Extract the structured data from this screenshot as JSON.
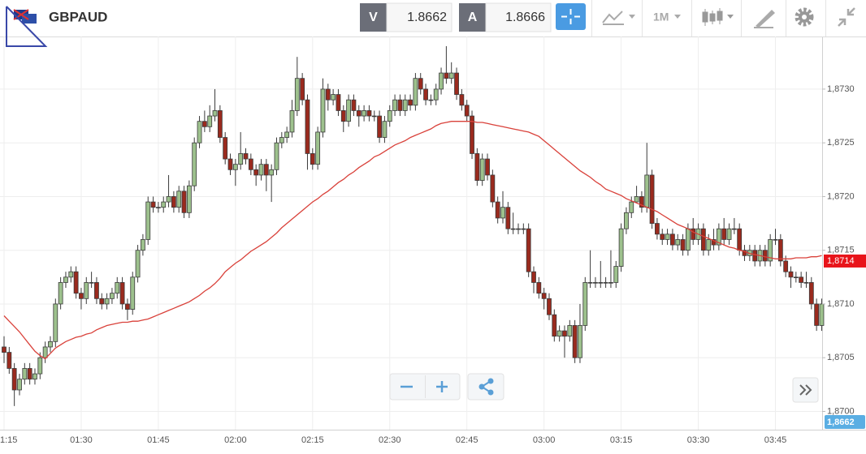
{
  "toolbar": {
    "symbol": "GBPAUD",
    "bid_label": "V",
    "bid": "1.8662",
    "ask_label": "A",
    "ask": "1.8666",
    "timeframe": "1M"
  },
  "chart_data": {
    "type": "candlestick",
    "categories": [
      "1:15",
      null,
      null,
      null,
      null,
      null,
      null,
      null,
      null,
      null,
      null,
      null,
      null,
      null,
      null,
      "01:30",
      null,
      null,
      null,
      null,
      null,
      null,
      null,
      null,
      null,
      null,
      null,
      null,
      null,
      null,
      "01:45",
      null,
      null,
      null,
      null,
      null,
      null,
      null,
      null,
      null,
      null,
      null,
      null,
      null,
      null,
      "02:00",
      null,
      null,
      null,
      null,
      null,
      null,
      null,
      null,
      null,
      null,
      null,
      null,
      null,
      null,
      "02:15",
      null,
      null,
      null,
      null,
      null,
      null,
      null,
      null,
      null,
      null,
      null,
      null,
      null,
      null,
      "02:30",
      null,
      null,
      null,
      null,
      null,
      null,
      null,
      null,
      null,
      null,
      null,
      null,
      null,
      null,
      "02:45",
      null,
      null,
      null,
      null,
      null,
      null,
      null,
      null,
      null,
      null,
      null,
      null,
      null,
      null,
      "03:00",
      null,
      null,
      null,
      null,
      null,
      null,
      null,
      null,
      null,
      null,
      null,
      null,
      null,
      null,
      "03:15",
      null,
      null,
      null,
      null,
      null,
      null,
      null,
      null,
      null,
      null,
      null,
      null,
      null,
      null,
      "03:30",
      null,
      null,
      null,
      null,
      null,
      null,
      null,
      null,
      null,
      null,
      null,
      null,
      null,
      null,
      "03:45",
      null,
      null,
      null,
      null,
      null,
      null,
      null,
      null,
      null
    ],
    "open": [
      1.8706,
      1.87055,
      1.8704,
      1.8702,
      1.8703,
      1.8704,
      1.8703,
      1.87035,
      1.8705,
      1.8706,
      1.87065,
      1.871,
      1.8712,
      1.87125,
      1.8713,
      1.8711,
      1.87105,
      1.8712,
      1.8712,
      1.87105,
      1.871,
      1.87105,
      1.8711,
      1.8712,
      1.871,
      1.87095,
      1.87125,
      1.8715,
      1.8716,
      1.87195,
      1.8719,
      1.8719,
      1.87195,
      1.872,
      1.8719,
      1.87205,
      1.87185,
      1.8721,
      1.8725,
      1.8727,
      1.87265,
      1.87275,
      1.8728,
      1.87255,
      1.87235,
      1.87225,
      1.8723,
      1.8724,
      1.87235,
      1.87225,
      1.8722,
      1.8723,
      1.8722,
      1.87225,
      1.8725,
      1.87255,
      1.8726,
      1.8728,
      1.8731,
      1.8729,
      1.8724,
      1.8723,
      1.8726,
      1.873,
      1.8729,
      1.87295,
      1.8728,
      1.8727,
      1.8729,
      1.8728,
      1.87275,
      1.8728,
      1.87275,
      1.87275,
      1.87255,
      1.8727,
      1.8728,
      1.8729,
      1.8728,
      1.8729,
      1.87285,
      1.8731,
      1.873,
      1.8729,
      1.8729,
      1.873,
      1.87315,
      1.8731,
      1.87315,
      1.87295,
      1.87285,
      1.87275,
      1.8724,
      1.87215,
      1.87235,
      1.8722,
      1.87195,
      1.8718,
      1.8719,
      1.8717,
      1.8717,
      1.8717,
      1.8717,
      1.8713,
      1.8712,
      1.8711,
      1.87105,
      1.8709,
      1.8707,
      1.87075,
      1.8707,
      1.8708,
      1.8705,
      1.8708,
      1.8712,
      1.8712,
      1.8712,
      1.8712,
      1.8712,
      1.8712,
      1.87135,
      1.8717,
      1.87185,
      1.87195,
      1.872,
      1.8719,
      1.8722,
      1.87175,
      1.87165,
      1.8716,
      1.87165,
      1.87155,
      1.8716,
      1.8715,
      1.8717,
      1.8716,
      1.8717,
      1.8715,
      1.8716,
      1.87155,
      1.8717,
      1.8716,
      1.8717,
      1.8717,
      1.8715,
      1.87145,
      1.8715,
      1.8714,
      1.8715,
      1.8714,
      1.8716,
      1.8716,
      1.8714,
      1.8713,
      1.87125,
      1.87125,
      1.8712,
      1.8712,
      1.871,
      1.8708
    ],
    "high": [
      1.8707,
      1.8706,
      1.87045,
      1.87035,
      1.87045,
      1.87045,
      1.8704,
      1.87055,
      1.87065,
      1.8707,
      1.87105,
      1.87125,
      1.8713,
      1.87135,
      1.87135,
      1.87115,
      1.87125,
      1.8713,
      1.87125,
      1.8711,
      1.8711,
      1.87115,
      1.87125,
      1.87125,
      1.87105,
      1.8713,
      1.87155,
      1.87165,
      1.872,
      1.872,
      1.87195,
      1.872,
      1.8722,
      1.87205,
      1.8721,
      1.8721,
      1.87215,
      1.87255,
      1.87275,
      1.8728,
      1.87285,
      1.873,
      1.87285,
      1.8726,
      1.8724,
      1.87235,
      1.8726,
      1.87245,
      1.8724,
      1.8723,
      1.87235,
      1.87235,
      1.8723,
      1.87255,
      1.8726,
      1.87265,
      1.8729,
      1.8733,
      1.87315,
      1.87295,
      1.87245,
      1.87265,
      1.8731,
      1.87305,
      1.873,
      1.873,
      1.87285,
      1.87295,
      1.87295,
      1.87285,
      1.87285,
      1.87285,
      1.8728,
      1.8728,
      1.87275,
      1.87285,
      1.87295,
      1.87295,
      1.87295,
      1.87295,
      1.87315,
      1.87315,
      1.87305,
      1.87295,
      1.87305,
      1.8732,
      1.8734,
      1.87325,
      1.8732,
      1.873,
      1.8729,
      1.8728,
      1.87245,
      1.8724,
      1.8724,
      1.87225,
      1.872,
      1.87205,
      1.87195,
      1.87185,
      1.87175,
      1.87175,
      1.87175,
      1.87135,
      1.87125,
      1.87115,
      1.8711,
      1.87095,
      1.8708,
      1.8708,
      1.87085,
      1.87085,
      1.871,
      1.87125,
      1.8715,
      1.87125,
      1.8714,
      1.87125,
      1.8715,
      1.8714,
      1.87175,
      1.8719,
      1.872,
      1.8721,
      1.87205,
      1.8725,
      1.87225,
      1.8718,
      1.8717,
      1.8717,
      1.8717,
      1.87165,
      1.87165,
      1.87175,
      1.8718,
      1.87175,
      1.87175,
      1.87165,
      1.8717,
      1.87175,
      1.8718,
      1.87175,
      1.8718,
      1.87175,
      1.87155,
      1.87155,
      1.87155,
      1.87155,
      1.87155,
      1.87165,
      1.8717,
      1.87165,
      1.87145,
      1.87135,
      1.8713,
      1.8713,
      1.8713,
      1.87125,
      1.87105,
      1.87105
    ],
    "low": [
      1.87045,
      1.87035,
      1.87005,
      1.87015,
      1.87025,
      1.87025,
      1.87025,
      1.8703,
      1.87045,
      1.87055,
      1.8706,
      1.87095,
      1.87115,
      1.8712,
      1.87105,
      1.87095,
      1.871,
      1.87115,
      1.871,
      1.87095,
      1.87095,
      1.871,
      1.87105,
      1.87095,
      1.87085,
      1.8709,
      1.8712,
      1.87145,
      1.87155,
      1.87185,
      1.87185,
      1.87185,
      1.8719,
      1.87185,
      1.87185,
      1.8718,
      1.8718,
      1.87205,
      1.87245,
      1.8726,
      1.8726,
      1.8727,
      1.8725,
      1.8723,
      1.8722,
      1.8721,
      1.87225,
      1.8723,
      1.8722,
      1.8721,
      1.87215,
      1.87205,
      1.87195,
      1.8722,
      1.87245,
      1.8725,
      1.87255,
      1.87275,
      1.87285,
      1.87225,
      1.87225,
      1.87225,
      1.87255,
      1.8728,
      1.87285,
      1.87275,
      1.8726,
      1.87265,
      1.87275,
      1.87265,
      1.8727,
      1.8727,
      1.8727,
      1.8725,
      1.8725,
      1.87265,
      1.87275,
      1.87275,
      1.87275,
      1.8728,
      1.8728,
      1.87295,
      1.87285,
      1.87285,
      1.87285,
      1.87295,
      1.87305,
      1.87305,
      1.8729,
      1.8728,
      1.8727,
      1.87235,
      1.8721,
      1.8721,
      1.87215,
      1.8719,
      1.87175,
      1.87175,
      1.87165,
      1.87165,
      1.87165,
      1.87165,
      1.87125,
      1.8711,
      1.87105,
      1.87095,
      1.87085,
      1.87065,
      1.87065,
      1.8705,
      1.87065,
      1.87045,
      1.87045,
      1.87075,
      1.87115,
      1.87115,
      1.87115,
      1.87115,
      1.87115,
      1.87115,
      1.8713,
      1.87165,
      1.8718,
      1.87195,
      1.87185,
      1.87185,
      1.8717,
      1.8716,
      1.87155,
      1.87155,
      1.8715,
      1.8715,
      1.87145,
      1.87145,
      1.87155,
      1.87155,
      1.87145,
      1.87145,
      1.8715,
      1.8715,
      1.87155,
      1.87155,
      1.87165,
      1.87145,
      1.8714,
      1.8714,
      1.87135,
      1.87135,
      1.87135,
      1.87135,
      1.87155,
      1.87135,
      1.87125,
      1.87115,
      1.8712,
      1.87115,
      1.87115,
      1.87095,
      1.87075,
      1.87075
    ],
    "close": [
      1.87055,
      1.8704,
      1.8702,
      1.8703,
      1.8704,
      1.8703,
      1.87035,
      1.8705,
      1.8706,
      1.87065,
      1.871,
      1.8712,
      1.87125,
      1.8713,
      1.8711,
      1.87105,
      1.8712,
      1.8712,
      1.87105,
      1.871,
      1.87105,
      1.8711,
      1.8712,
      1.871,
      1.87095,
      1.87125,
      1.8715,
      1.8716,
      1.87195,
      1.8719,
      1.8719,
      1.87195,
      1.872,
      1.8719,
      1.87205,
      1.87185,
      1.8721,
      1.8725,
      1.8727,
      1.87265,
      1.87275,
      1.8728,
      1.87255,
      1.87235,
      1.87225,
      1.8723,
      1.8724,
      1.87235,
      1.87225,
      1.8722,
      1.8723,
      1.8722,
      1.87225,
      1.8725,
      1.87255,
      1.8726,
      1.8728,
      1.8731,
      1.8729,
      1.8724,
      1.8723,
      1.8726,
      1.873,
      1.8729,
      1.87295,
      1.8728,
      1.8727,
      1.8729,
      1.8728,
      1.87275,
      1.8728,
      1.87275,
      1.87275,
      1.87255,
      1.8727,
      1.8728,
      1.8729,
      1.8728,
      1.8729,
      1.87285,
      1.8731,
      1.873,
      1.8729,
      1.8729,
      1.873,
      1.87315,
      1.8731,
      1.87315,
      1.87295,
      1.87285,
      1.87275,
      1.8724,
      1.87215,
      1.87235,
      1.8722,
      1.87195,
      1.8718,
      1.8719,
      1.8717,
      1.8717,
      1.8717,
      1.8717,
      1.8713,
      1.8712,
      1.8711,
      1.87105,
      1.8709,
      1.8707,
      1.87075,
      1.8707,
      1.8708,
      1.8705,
      1.8708,
      1.8712,
      1.8712,
      1.8712,
      1.8712,
      1.8712,
      1.8712,
      1.87135,
      1.8717,
      1.87185,
      1.87195,
      1.872,
      1.8719,
      1.8722,
      1.87175,
      1.87165,
      1.8716,
      1.87165,
      1.87155,
      1.8716,
      1.8715,
      1.8717,
      1.8716,
      1.8717,
      1.8715,
      1.8716,
      1.87155,
      1.8717,
      1.8716,
      1.8717,
      1.8717,
      1.8715,
      1.87145,
      1.8715,
      1.8714,
      1.8715,
      1.8714,
      1.8716,
      1.8716,
      1.8714,
      1.8713,
      1.87125,
      1.87125,
      1.8712,
      1.8712,
      1.871,
      1.8708,
      1.871
    ],
    "up_color": "#9dc18d",
    "down_color": "#9a2a1e",
    "overlay": {
      "type": "line",
      "color": "#d9413a",
      "values": [
        1.87089,
        1.87084,
        1.87079,
        1.87074,
        1.87068,
        1.87062,
        1.87056,
        1.87052,
        1.87049,
        1.87054,
        1.87059,
        1.87062,
        1.87065,
        1.87067,
        1.87069,
        1.8707,
        1.87072,
        1.87073,
        1.87076,
        1.87078,
        1.8708,
        1.87081,
        1.87082,
        1.87083,
        1.87083,
        1.87084,
        1.87084,
        1.87085,
        1.87086,
        1.87088,
        1.8709,
        1.87092,
        1.87094,
        1.87096,
        1.87098,
        1.871,
        1.87102,
        1.87105,
        1.87108,
        1.87112,
        1.87115,
        1.87119,
        1.87124,
        1.8713,
        1.87134,
        1.87138,
        1.87141,
        1.87145,
        1.87149,
        1.87152,
        1.87155,
        1.87158,
        1.87162,
        1.87166,
        1.87171,
        1.87175,
        1.87179,
        1.87183,
        1.87187,
        1.87191,
        1.87195,
        1.87198,
        1.87202,
        1.87205,
        1.87209,
        1.87213,
        1.87216,
        1.8722,
        1.87223,
        1.87227,
        1.8723,
        1.87233,
        1.87237,
        1.87239,
        1.87242,
        1.87245,
        1.87248,
        1.8725,
        1.87252,
        1.87255,
        1.87257,
        1.87259,
        1.87261,
        1.87263,
        1.87266,
        1.87268,
        1.87269,
        1.8727,
        1.8727,
        1.8727,
        1.8727,
        1.8727,
        1.87269,
        1.87269,
        1.87268,
        1.87267,
        1.87266,
        1.87265,
        1.87264,
        1.87263,
        1.87262,
        1.87261,
        1.8726,
        1.87258,
        1.87256,
        1.87252,
        1.87248,
        1.87244,
        1.8724,
        1.87236,
        1.87232,
        1.87228,
        1.87224,
        1.87221,
        1.87218,
        1.87214,
        1.87211,
        1.87207,
        1.87205,
        1.87203,
        1.87201,
        1.87198,
        1.87196,
        1.87194,
        1.87192,
        1.8719,
        1.87188,
        1.87186,
        1.87183,
        1.8718,
        1.87177,
        1.87174,
        1.87172,
        1.8717,
        1.87167,
        1.87165,
        1.87163,
        1.87161,
        1.87159,
        1.87157,
        1.87155,
        1.87153,
        1.87152,
        1.8715,
        1.87149,
        1.87147,
        1.87146,
        1.87145,
        1.87144,
        1.87143,
        1.87142,
        1.87142,
        1.87142,
        1.87142,
        1.87143,
        1.87143,
        1.87143,
        1.87144,
        1.87144,
        1.87145
      ]
    },
    "ylim": [
      1.86983,
      1.87349
    ],
    "yticks": [
      {
        "value": 1.87,
        "label": "1,8700"
      },
      {
        "value": 1.8705,
        "label": "1,8705"
      },
      {
        "value": 1.871,
        "label": "1,8710"
      },
      {
        "value": 1.8715,
        "label": "1,8715"
      },
      {
        "value": 1.872,
        "label": "1,8720"
      },
      {
        "value": 1.8725,
        "label": "1,8725"
      },
      {
        "value": 1.873,
        "label": "1,8730"
      }
    ],
    "grid": true,
    "last_price": {
      "value": 1.8714,
      "label": "1,8714"
    },
    "bid_badge": "1,8662"
  }
}
